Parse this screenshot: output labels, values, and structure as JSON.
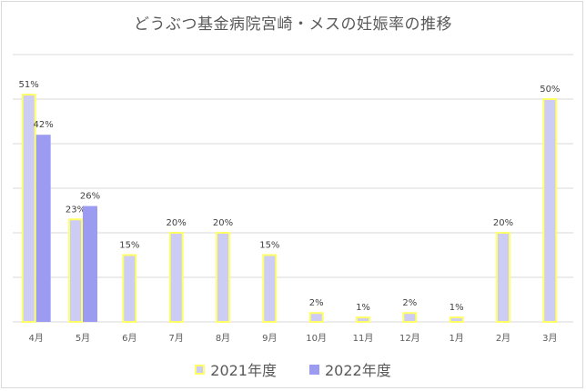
{
  "chart_data": {
    "type": "bar",
    "title": "どうぶつ基金病院宮崎・メスの妊娠率の推移",
    "categories": [
      "4月",
      "5月",
      "6月",
      "7月",
      "8月",
      "9月",
      "10月",
      "11月",
      "12月",
      "1月",
      "2月",
      "3月"
    ],
    "series": [
      {
        "name": "2021年度",
        "values": [
          51,
          23,
          15,
          20,
          20,
          15,
          2,
          1,
          2,
          1,
          20,
          50
        ],
        "labels": [
          "51%",
          "23%",
          "15%",
          "20%",
          "20%",
          "15%",
          "2%",
          "1%",
          "2%",
          "1%",
          "20%",
          "50%"
        ],
        "fill": "#ccccf5",
        "stroke": "#ffff66"
      },
      {
        "name": "2022年度",
        "values": [
          42,
          26,
          null,
          null,
          null,
          null,
          null,
          null,
          null,
          null,
          null,
          null
        ],
        "labels": [
          "42%",
          "26%",
          "",
          "",
          "",
          "",
          "",
          "",
          "",
          "",
          "",
          ""
        ],
        "fill": "#9b9bf2",
        "stroke": "#9b9bf2"
      }
    ],
    "ylim": [
      0,
      60
    ],
    "grid": true,
    "legend": "bottom"
  }
}
